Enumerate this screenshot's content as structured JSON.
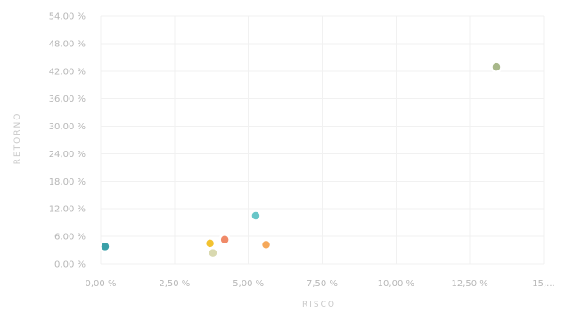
{
  "chart_data": {
    "type": "scatter",
    "title": "",
    "xlabel": "RISCO",
    "ylabel": "RETORNO",
    "xlim": [
      0,
      15
    ],
    "ylim": [
      0,
      54
    ],
    "grid": true,
    "x_ticks": [
      {
        "value": 0,
        "label": "0,00 %"
      },
      {
        "value": 2.5,
        "label": "2,50 %"
      },
      {
        "value": 5,
        "label": "5,00 %"
      },
      {
        "value": 7.5,
        "label": "7,50 %"
      },
      {
        "value": 10,
        "label": "10,00 %"
      },
      {
        "value": 12.5,
        "label": "12,50 %"
      },
      {
        "value": 15,
        "label": "15,..."
      }
    ],
    "y_ticks": [
      {
        "value": 0,
        "label": "0,00 %"
      },
      {
        "value": 6,
        "label": "6,00 %"
      },
      {
        "value": 12,
        "label": "12,00 %"
      },
      {
        "value": 18,
        "label": "18,00 %"
      },
      {
        "value": 24,
        "label": "24,00 %"
      },
      {
        "value": 30,
        "label": "30,00 %"
      },
      {
        "value": 36,
        "label": "36,00 %"
      },
      {
        "value": 42,
        "label": "42,00 %"
      },
      {
        "value": 48,
        "label": "48,00 %"
      },
      {
        "value": 54,
        "label": "54,00 %"
      }
    ],
    "points": [
      {
        "x": 0.15,
        "y": 3.8,
        "color": "#3aa0a8"
      },
      {
        "x": 3.7,
        "y": 4.5,
        "color": "#f2c230"
      },
      {
        "x": 3.8,
        "y": 2.4,
        "color": "#d9d9b0"
      },
      {
        "x": 4.2,
        "y": 5.3,
        "color": "#f08a68"
      },
      {
        "x": 5.25,
        "y": 10.5,
        "color": "#68c6c8"
      },
      {
        "x": 5.6,
        "y": 4.2,
        "color": "#f5a85a"
      },
      {
        "x": 13.4,
        "y": 42.9,
        "color": "#a8b88a"
      }
    ]
  }
}
